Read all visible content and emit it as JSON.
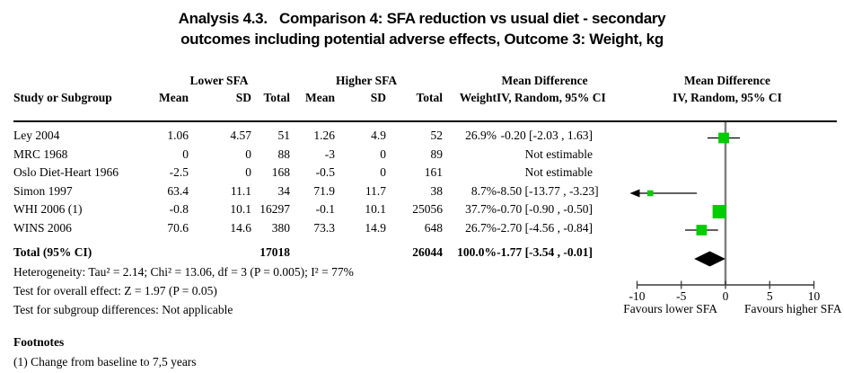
{
  "title": {
    "line1": "Analysis 4.3.   Comparison 4: SFA reduction vs usual diet - secondary",
    "line2": "outcomes including potential adverse effects, Outcome 3: Weight, kg"
  },
  "table": {
    "group_headers": {
      "lower": "Lower SFA",
      "higher": "Higher SFA"
    },
    "col_headers": {
      "study": "Study or Subgroup",
      "mean": "Mean",
      "sd": "SD",
      "total": "Total",
      "weight": "Weight",
      "md_label": "Mean Difference",
      "md_sub": "IV, Random, 95% CI"
    },
    "plot_headers": {
      "md_label": "Mean Difference",
      "md_sub": "IV, Random, 95% CI"
    },
    "rows": [
      {
        "study": "Ley 2004",
        "mean1": "1.06",
        "sd1": "4.57",
        "total1": "51",
        "mean2": "1.26",
        "sd2": "4.9",
        "total2": "52",
        "weight": "26.9%",
        "ci": "-0.20 [-2.03 , 1.63]"
      },
      {
        "study": "MRC 1968",
        "mean1": "0",
        "sd1": "0",
        "total1": "88",
        "mean2": "-3",
        "sd2": "0",
        "total2": "89",
        "weight": "",
        "ci": "Not estimable"
      },
      {
        "study": "Oslo Diet-Heart 1966",
        "mean1": "-2.5",
        "sd1": "0",
        "total1": "168",
        "mean2": "-0.5",
        "sd2": "0",
        "total2": "161",
        "weight": "",
        "ci": "Not estimable"
      },
      {
        "study": "Simon 1997",
        "mean1": "63.4",
        "sd1": "11.1",
        "total1": "34",
        "mean2": "71.9",
        "sd2": "11.7",
        "total2": "38",
        "weight": "8.7%",
        "ci": "-8.50 [-13.77 , -3.23]"
      },
      {
        "study": "WHI 2006 (1)",
        "mean1": "-0.8",
        "sd1": "10.1",
        "total1": "16297",
        "mean2": "-0.1",
        "sd2": "10.1",
        "total2": "25056",
        "weight": "37.7%",
        "ci": "-0.70 [-0.90 , -0.50]"
      },
      {
        "study": "WINS 2006",
        "mean1": "70.6",
        "sd1": "14.6",
        "total1": "380",
        "mean2": "73.3",
        "sd2": "14.9",
        "total2": "648",
        "weight": "26.7%",
        "ci": "-2.70 [-4.56 , -0.84]"
      }
    ],
    "total_row": {
      "label": "Total (95% CI)",
      "total1": "17018",
      "total2": "26044",
      "weight": "100.0%",
      "ci": "-1.77 [-3.54 , -0.01]"
    }
  },
  "stats": {
    "heterogeneity": "Heterogeneity: Tau² = 2.14; Chi² = 13.06, df = 3 (P = 0.005); I² = 77%",
    "overall_effect": "Test for overall effect: Z = 1.97 (P = 0.05)",
    "subgroup": "Test for subgroup differences: Not applicable"
  },
  "footnotes": {
    "heading": "Footnotes",
    "items": [
      "(1) Change from baseline to 7,5 years"
    ]
  },
  "chart_data": {
    "type": "forest",
    "effect_measure": "Mean Difference, IV, Random, 95% CI",
    "x_axis": {
      "min": -10,
      "max": 10,
      "ticks": [
        -10,
        -5,
        0,
        5,
        10
      ],
      "favours_left": "Favours lower SFA",
      "favours_right": "Favours higher SFA"
    },
    "studies": [
      {
        "name": "Ley 2004",
        "estimable": true,
        "md": -0.2,
        "ci_low": -2.03,
        "ci_high": 1.63,
        "weight_pct": 26.9
      },
      {
        "name": "MRC 1968",
        "estimable": false,
        "md": null,
        "ci_low": null,
        "ci_high": null,
        "weight_pct": 0
      },
      {
        "name": "Oslo Diet-Heart 1966",
        "estimable": false,
        "md": null,
        "ci_low": null,
        "ci_high": null,
        "weight_pct": 0
      },
      {
        "name": "Simon 1997",
        "estimable": true,
        "md": -8.5,
        "ci_low": -13.77,
        "ci_high": -3.23,
        "weight_pct": 8.7
      },
      {
        "name": "WHI 2006 (1)",
        "estimable": true,
        "md": -0.7,
        "ci_low": -0.9,
        "ci_high": -0.5,
        "weight_pct": 37.7
      },
      {
        "name": "WINS 2006",
        "estimable": true,
        "md": -2.7,
        "ci_low": -4.56,
        "ci_high": -0.84,
        "weight_pct": 26.7
      }
    ],
    "total": {
      "md": -1.77,
      "ci_low": -3.54,
      "ci_high": -0.01
    },
    "colors": {
      "marker": "#00cc00",
      "diamond": "#000000",
      "zero_line": "#808080",
      "axis": "#3a3a3a",
      "ci_line": "#000000"
    }
  }
}
